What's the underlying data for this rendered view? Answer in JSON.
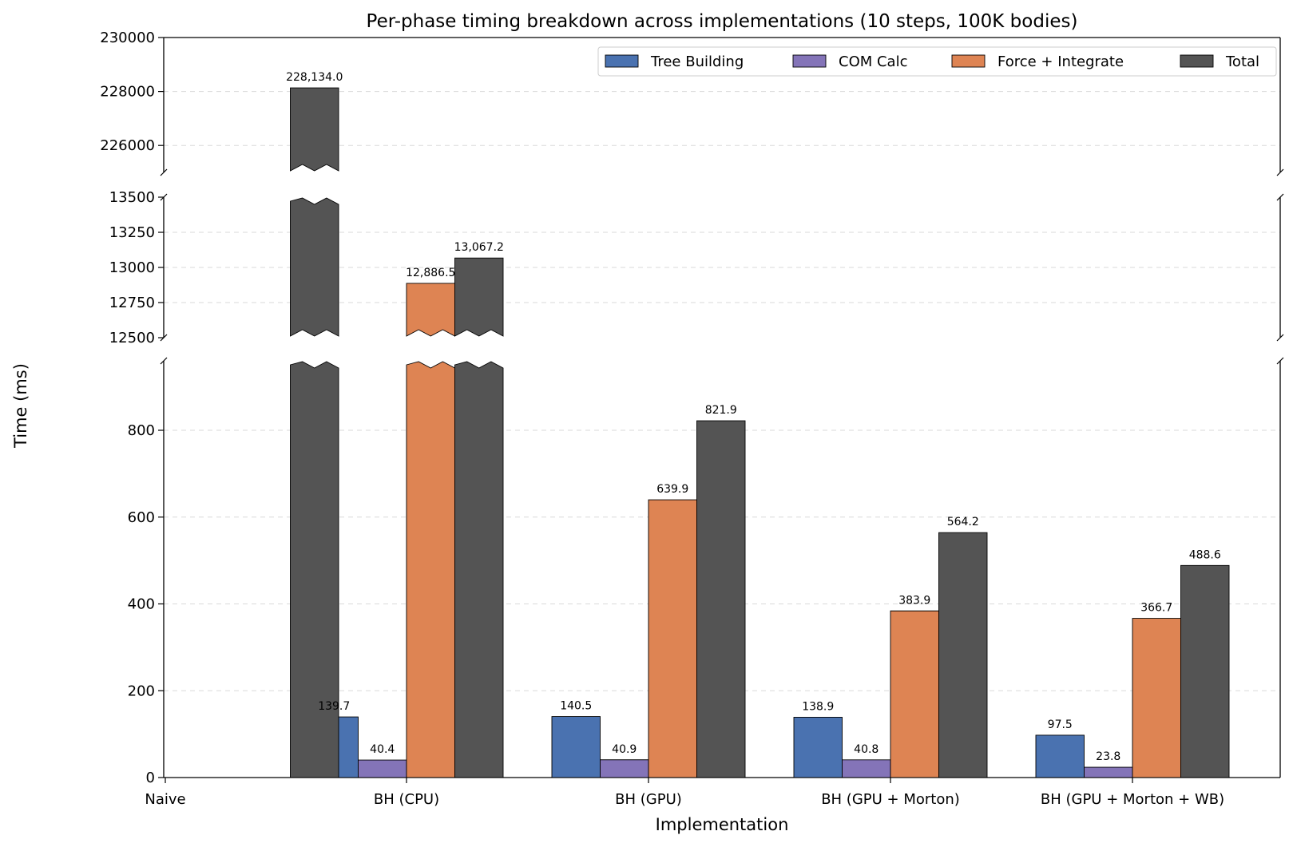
{
  "chart_data": {
    "type": "bar",
    "title": "Per-phase timing breakdown across implementations (10 steps, 100K bodies)",
    "xlabel": "Implementation",
    "ylabel": "Time (ms)",
    "categories": [
      "Naive",
      "BH (CPU)",
      "BH (GPU)",
      "BH (GPU + Morton)",
      "BH (GPU + Morton + WB)"
    ],
    "series": [
      {
        "name": "Tree Building",
        "color": "#4a72b0",
        "values": [
          null,
          139.7,
          140.5,
          138.9,
          97.5
        ],
        "labels": [
          "",
          "139.7",
          "140.5",
          "138.9",
          "97.5"
        ]
      },
      {
        "name": "COM Calc",
        "color": "#8474b8",
        "values": [
          null,
          40.4,
          40.9,
          40.8,
          23.8
        ],
        "labels": [
          "",
          "40.4",
          "40.9",
          "40.8",
          "23.8"
        ]
      },
      {
        "name": "Force + Integrate",
        "color": "#de8453",
        "values": [
          null,
          12886.5,
          639.9,
          383.9,
          366.7
        ],
        "labels": [
          "",
          "12,886.5",
          "639.9",
          "383.9",
          "366.7"
        ]
      },
      {
        "name": "Total",
        "color": "#545454",
        "values": [
          228134.0,
          13067.2,
          821.9,
          564.2,
          488.6
        ],
        "labels": [
          "228,134.0",
          "13,067.2",
          "821.9",
          "564.2",
          "488.6"
        ]
      }
    ],
    "broken_axis": true,
    "panels": [
      {
        "ylim": [
          225000,
          230000
        ],
        "ticks": [
          226000,
          228000,
          230000
        ],
        "tick_labels": [
          "226000",
          "228000",
          "230000"
        ]
      },
      {
        "ylim": [
          12500,
          13500
        ],
        "ticks": [
          12500,
          12750,
          13000,
          13250,
          13500
        ],
        "tick_labels": [
          "12500",
          "12750",
          "13000",
          "13250",
          "13500"
        ]
      },
      {
        "ylim": [
          0,
          960
        ],
        "ticks": [
          0,
          200,
          400,
          600,
          800
        ],
        "tick_labels": [
          "0",
          "200",
          "400",
          "600",
          "800"
        ]
      }
    ],
    "grid": "y-dashed",
    "legend_position": "top-right"
  }
}
